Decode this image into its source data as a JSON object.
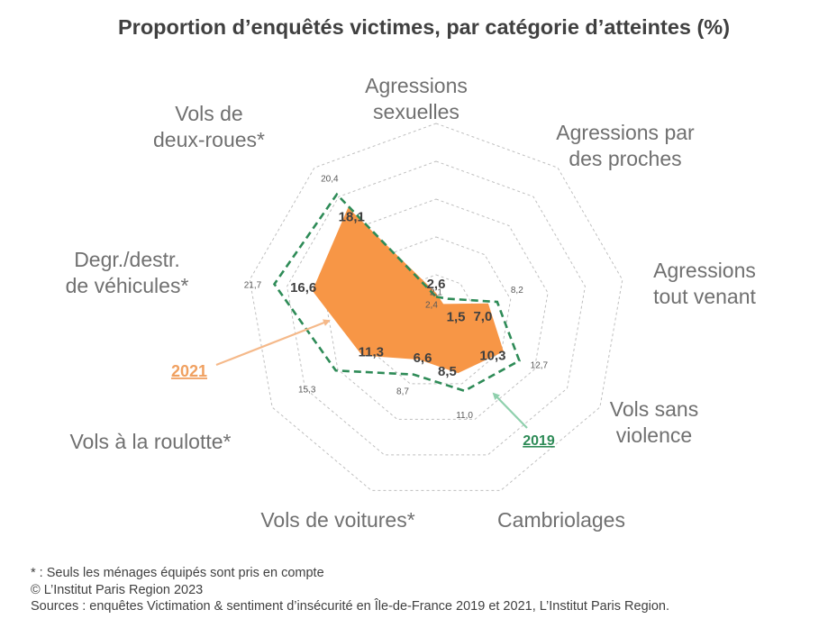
{
  "title": "Proportion d’enquêtés victimes, par catégorie d’atteintes (%)",
  "footer": {
    "note": "* : Seuls les ménages équipés sont pris en compte",
    "copyright": "© L’Institut Paris Region 2023",
    "sources": "Sources : enquêtes Victimation & sentiment d’insécurité en Île-de-France 2019 et 2021, L’Institut Paris Region."
  },
  "colors": {
    "series_2021": "#f79646",
    "series_2019": "#2e8b57",
    "grid": "#bfbfbf",
    "legend_2021": "#f0a060"
  },
  "chart_data": {
    "type": "radar",
    "title": "Proportion d’enquêtés victimes, par catégorie d’atteintes (%)",
    "categories": [
      {
        "label": [
          "Agressions",
          "sexuelles"
        ]
      },
      {
        "label": [
          "Agressions par",
          "des proches"
        ]
      },
      {
        "label": [
          "Agressions",
          "tout venant"
        ]
      },
      {
        "label": [
          "Vols sans",
          "violence"
        ]
      },
      {
        "label": [
          "Cambriolages"
        ]
      },
      {
        "label": [
          "Vols de voitures*"
        ]
      },
      {
        "label": [
          "Vols à la roulotte*"
        ]
      },
      {
        "label": [
          "Degr./destr.",
          "de véhicules*"
        ]
      },
      {
        "label": [
          "Vols de",
          "deux-roues*"
        ]
      }
    ],
    "series": [
      {
        "name": "2021",
        "values": [
          2.6,
          1.5,
          7.0,
          10.3,
          8.5,
          6.6,
          11.3,
          16.6,
          18.1
        ],
        "labels": [
          "2,6",
          "1,5",
          "7,0",
          "10,3",
          "8,5",
          "6,6",
          "11,3",
          "16,6",
          "18,1"
        ]
      },
      {
        "name": "2019",
        "values": [
          2.1,
          2.4,
          8.2,
          12.7,
          11.0,
          8.7,
          15.3,
          21.7,
          20.4
        ],
        "labels": [
          "2,1",
          "2,4",
          "8,2",
          "12,7",
          "11,0",
          "8,7",
          "15,3",
          "21,7",
          "20,4"
        ]
      }
    ],
    "rlim": [
      0,
      25
    ],
    "grid": true
  }
}
